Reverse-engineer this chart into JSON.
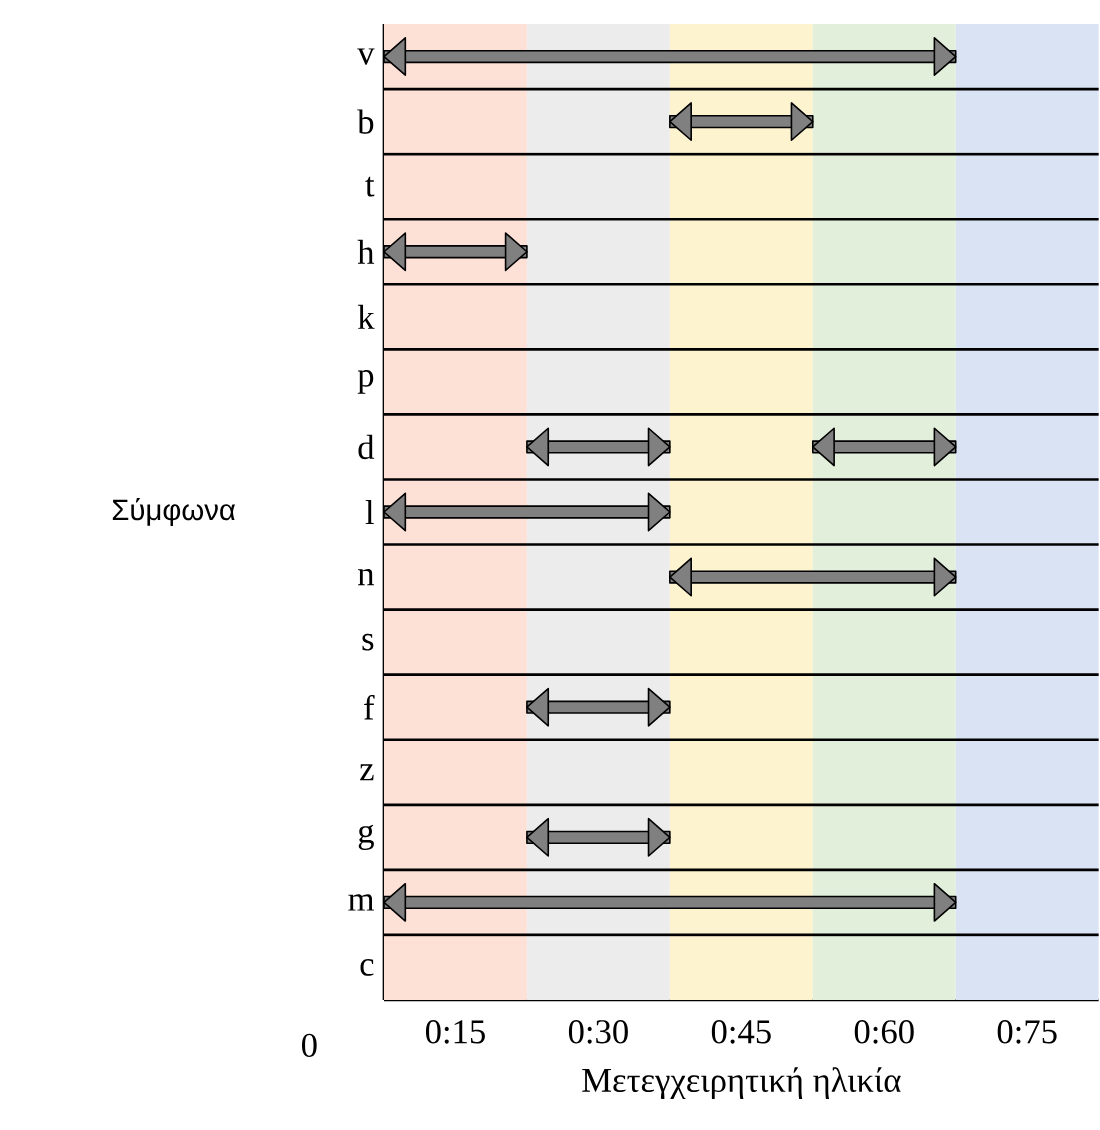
{
  "chart_data": {
    "type": "bar",
    "orientation": "horizontal",
    "ylabel": "Σύμφωνα",
    "xlabel": "Μετεγχειρητική ηλικία",
    "categories": [
      "v",
      "b",
      "t",
      "h",
      "k",
      "p",
      "d",
      "l",
      "n",
      "s",
      "f",
      "z",
      "g",
      "m",
      "c"
    ],
    "xlim": [
      0.125,
      1.375
    ],
    "xticks": [
      {
        "value": 0.25,
        "label": "0:15"
      },
      {
        "value": 0.5,
        "label": "0:30"
      },
      {
        "value": 0.75,
        "label": "0:45"
      },
      {
        "value": 1,
        "label": "0:60"
      },
      {
        "value": 1.25,
        "label": "0:75"
      }
    ],
    "series": [
      {
        "color": "#808080",
        "base": [
          0.125,
          0.625,
          null,
          0.125,
          null,
          null,
          0.375,
          0.125,
          0.625,
          null,
          0.375,
          null,
          0.375,
          0.125,
          null
        ],
        "values": [
          1,
          0.25,
          null,
          0.25,
          null,
          null,
          0.25,
          0.5,
          0.5,
          null,
          0.25,
          null,
          0.25,
          1,
          null
        ]
      },
      {
        "color": "#808080",
        "base": [
          null,
          null,
          null,
          null,
          null,
          null,
          0.875,
          null,
          null,
          null,
          null,
          null,
          null,
          null,
          null
        ],
        "values": [
          null,
          null,
          null,
          null,
          null,
          null,
          0.25,
          null,
          null,
          null,
          null,
          null,
          null,
          null,
          null
        ]
      }
    ],
    "bands": [
      {
        "axis": "x",
        "from": 0.125,
        "to": 0.375,
        "color": "#fde0d6"
      },
      {
        "axis": "x",
        "from": 0.375,
        "to": 0.625,
        "color": "#ececec"
      },
      {
        "axis": "x",
        "from": 0.625,
        "to": 0.875,
        "color": "#fdf3cf"
      },
      {
        "axis": "x",
        "from": 0.875,
        "to": 1.125,
        "color": "#e2efda"
      },
      {
        "axis": "x",
        "from": 1.125,
        "to": 1.375,
        "color": "#dae3f3"
      }
    ],
    "grid": "y",
    "annotations": [
      "0"
    ]
  }
}
